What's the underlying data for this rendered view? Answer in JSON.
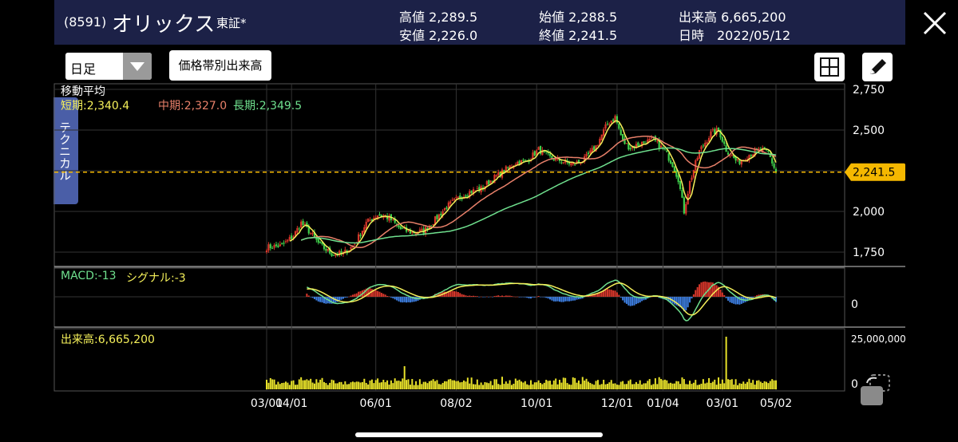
{
  "header": {
    "code": "(8591)",
    "name": "オリックス",
    "market": "東証*",
    "high": "高値 2,289.5",
    "low": "安値 2,226.0",
    "open": "始値 2,288.5",
    "close": "終値 2,241.5",
    "volume": "出来高 6,665,200",
    "datetime": "日時　2022/05/12"
  },
  "toolbar": {
    "period": "日足",
    "volume_profile_label": "価格帯別出来高",
    "technical_tab_label": "テクニカル"
  },
  "colors": {
    "up": "#d8372b",
    "down": "#3fcf4b",
    "ma_short": "#f5f05a",
    "ma_mid": "#e8806a",
    "ma_long": "#6fe08e",
    "macd": "#6fe08e",
    "signal": "#f5f05a",
    "hist_pos": "#d8372b",
    "hist_neg": "#3d7ee0",
    "volume": "#e8e22a",
    "last_price": "#f5b800"
  },
  "legend": {
    "ma_title": "移動平均",
    "ma_short": "短期:2,340.4",
    "ma_mid": "中期:2,327.0",
    "ma_long": "長期:2,349.5",
    "macd": "MACD:-13",
    "signal": "シグナル:-3",
    "volume": "出来高:6,665,200"
  },
  "chart_data": [
    {
      "type": "candlestick",
      "title": "",
      "yaxis_ticks": [
        "2,750",
        "2,500",
        "2,000",
        "1,750"
      ],
      "ylim": [
        1650,
        2750
      ],
      "last_price": 2241.5,
      "last_price_label": "2,241.5",
      "xaxis_ticks": [
        "03/01",
        "04/01",
        "06/01",
        "08/02",
        "10/01",
        "12/01",
        "01/04",
        "03/01",
        "05/02"
      ],
      "price_path": [
        [
          0,
          1780
        ],
        [
          8,
          1790
        ],
        [
          14,
          1850
        ],
        [
          18,
          1930
        ],
        [
          22,
          1880
        ],
        [
          28,
          1790
        ],
        [
          34,
          1740
        ],
        [
          40,
          1740
        ],
        [
          46,
          1800
        ],
        [
          52,
          1930
        ],
        [
          58,
          1980
        ],
        [
          64,
          1960
        ],
        [
          70,
          1890
        ],
        [
          76,
          1870
        ],
        [
          82,
          1880
        ],
        [
          88,
          1950
        ],
        [
          94,
          2030
        ],
        [
          100,
          2080
        ],
        [
          106,
          2120
        ],
        [
          112,
          2140
        ],
        [
          118,
          2200
        ],
        [
          124,
          2250
        ],
        [
          130,
          2300
        ],
        [
          136,
          2310
        ],
        [
          142,
          2380
        ],
        [
          148,
          2330
        ],
        [
          154,
          2310
        ],
        [
          160,
          2290
        ],
        [
          166,
          2320
        ],
        [
          172,
          2400
        ],
        [
          178,
          2540
        ],
        [
          182,
          2580
        ],
        [
          186,
          2430
        ],
        [
          190,
          2390
        ],
        [
          196,
          2420
        ],
        [
          202,
          2440
        ],
        [
          208,
          2370
        ],
        [
          212,
          2290
        ],
        [
          215,
          2200
        ],
        [
          218,
          2000
        ],
        [
          221,
          2180
        ],
        [
          226,
          2370
        ],
        [
          232,
          2480
        ],
        [
          236,
          2500
        ],
        [
          240,
          2380
        ],
        [
          246,
          2300
        ],
        [
          252,
          2350
        ],
        [
          258,
          2380
        ],
        [
          262,
          2360
        ],
        [
          266,
          2241.5
        ]
      ],
      "moving_averages": {
        "short": "短期:2,340.4",
        "mid": "中期:2,327.0",
        "long": "長期:2,349.5"
      }
    },
    {
      "type": "line",
      "title": "",
      "series": [
        {
          "name": "MACD",
          "last": -13
        },
        {
          "name": "シグナル",
          "last": -3
        }
      ],
      "yaxis_ticks": [
        "0"
      ]
    },
    {
      "type": "bar",
      "title": "",
      "series": [
        {
          "name": "出来高",
          "last": 6665200
        }
      ],
      "yaxis_ticks": [
        "25,000,000",
        "0"
      ],
      "ylim": [
        0,
        25000000
      ],
      "spikes": [
        {
          "index": 72,
          "value": 11000000
        },
        {
          "index": 240,
          "value": 25000000
        }
      ],
      "typical_range": [
        2000000,
        6000000
      ]
    }
  ]
}
